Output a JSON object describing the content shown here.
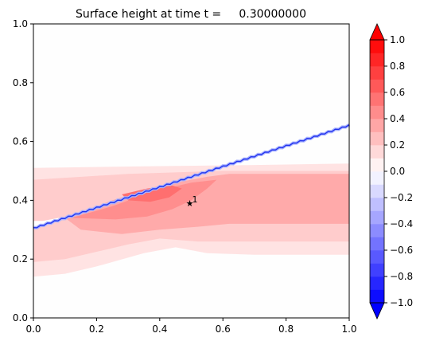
{
  "chart_data": {
    "type": "heatmap",
    "title": "Surface height at time t =     0.30000000",
    "xlabel": "",
    "ylabel": "",
    "xlim": [
      0,
      1
    ],
    "ylim": [
      0,
      1
    ],
    "xticks": [
      "0.0",
      "0.2",
      "0.4",
      "0.6",
      "0.8",
      "1.0"
    ],
    "yticks": [
      "0.0",
      "0.2",
      "0.4",
      "0.6",
      "0.8",
      "1.0"
    ],
    "colorbar": {
      "min": -1.0,
      "max": 1.0,
      "extend": "both",
      "levels": [
        -1.0,
        -0.9,
        -0.8,
        -0.7,
        -0.6,
        -0.5,
        -0.4,
        -0.3,
        -0.2,
        -0.1,
        0.0,
        0.1,
        0.2,
        0.3,
        0.4,
        0.5,
        0.6,
        0.7,
        0.8,
        0.9,
        1.0
      ],
      "ticks": [
        "1.0",
        "0.8",
        "0.6",
        "0.4",
        "0.2",
        "0.0",
        "−0.2",
        "−0.4",
        "−0.6",
        "−0.8",
        "−1.0"
      ],
      "colormap": "bwr",
      "low_color": "#0000ff",
      "mid_color": "#ffffff",
      "high_color": "#ff0000"
    },
    "contour_regions": [
      {
        "level": "0.1 to 0.2",
        "color": "#ffe3e3",
        "outline": [
          [
            0.0,
            0.51
          ],
          [
            0.3,
            0.515
          ],
          [
            0.7,
            0.52
          ],
          [
            1.0,
            0.525
          ],
          [
            1.0,
            0.215
          ],
          [
            0.7,
            0.215
          ],
          [
            0.55,
            0.22
          ],
          [
            0.45,
            0.24
          ],
          [
            0.35,
            0.22
          ],
          [
            0.2,
            0.175
          ],
          [
            0.1,
            0.15
          ],
          [
            0.0,
            0.14
          ]
        ]
      },
      {
        "level": "0.2 to 0.3",
        "color": "#ffcccc",
        "outline": [
          [
            0.0,
            0.47
          ],
          [
            0.3,
            0.49
          ],
          [
            0.6,
            0.5
          ],
          [
            1.0,
            0.5
          ],
          [
            1.0,
            0.26
          ],
          [
            0.65,
            0.26
          ],
          [
            0.52,
            0.26
          ],
          [
            0.4,
            0.27
          ],
          [
            0.3,
            0.25
          ],
          [
            0.2,
            0.225
          ],
          [
            0.1,
            0.2
          ],
          [
            0.0,
            0.19
          ]
        ]
      },
      {
        "level": "0.3 to 0.4",
        "color": "#ffaaaa",
        "outline": [
          [
            0.1,
            0.34
          ],
          [
            0.25,
            0.4
          ],
          [
            0.4,
            0.45
          ],
          [
            0.55,
            0.48
          ],
          [
            0.62,
            0.49
          ],
          [
            1.0,
            0.49
          ],
          [
            1.0,
            0.32
          ],
          [
            0.62,
            0.32
          ],
          [
            0.52,
            0.31
          ],
          [
            0.4,
            0.3
          ],
          [
            0.28,
            0.285
          ],
          [
            0.15,
            0.3
          ]
        ]
      },
      {
        "level": "0.4 to 0.5",
        "color": "#ff8e8e",
        "outline": [
          [
            0.12,
            0.34
          ],
          [
            0.25,
            0.38
          ],
          [
            0.38,
            0.43
          ],
          [
            0.5,
            0.46
          ],
          [
            0.58,
            0.47
          ],
          [
            0.55,
            0.44
          ],
          [
            0.5,
            0.4
          ],
          [
            0.44,
            0.37
          ],
          [
            0.36,
            0.345
          ],
          [
            0.26,
            0.335
          ]
        ]
      },
      {
        "level": "0.5 to 0.6",
        "color": "#ff6f6f",
        "outline": [
          [
            0.28,
            0.42
          ],
          [
            0.36,
            0.44
          ],
          [
            0.44,
            0.45
          ],
          [
            0.47,
            0.44
          ],
          [
            0.43,
            0.41
          ],
          [
            0.37,
            0.395
          ],
          [
            0.3,
            0.4
          ]
        ]
      }
    ],
    "shoreline": {
      "color": "#2233ee",
      "x": [
        0.0,
        0.2,
        0.4,
        0.6,
        0.8,
        1.0
      ],
      "y": [
        0.305,
        0.375,
        0.445,
        0.515,
        0.585,
        0.655
      ]
    },
    "wet_gap": {
      "color": "#ffffff",
      "outline": [
        [
          0.0,
          0.305
        ],
        [
          0.05,
          0.322
        ],
        [
          0.12,
          0.345
        ],
        [
          0.08,
          0.34
        ],
        [
          0.03,
          0.33
        ],
        [
          0.0,
          0.33
        ]
      ]
    },
    "markers": [
      {
        "x": 0.495,
        "y": 0.39,
        "symbol": "★",
        "label": "1"
      }
    ]
  }
}
